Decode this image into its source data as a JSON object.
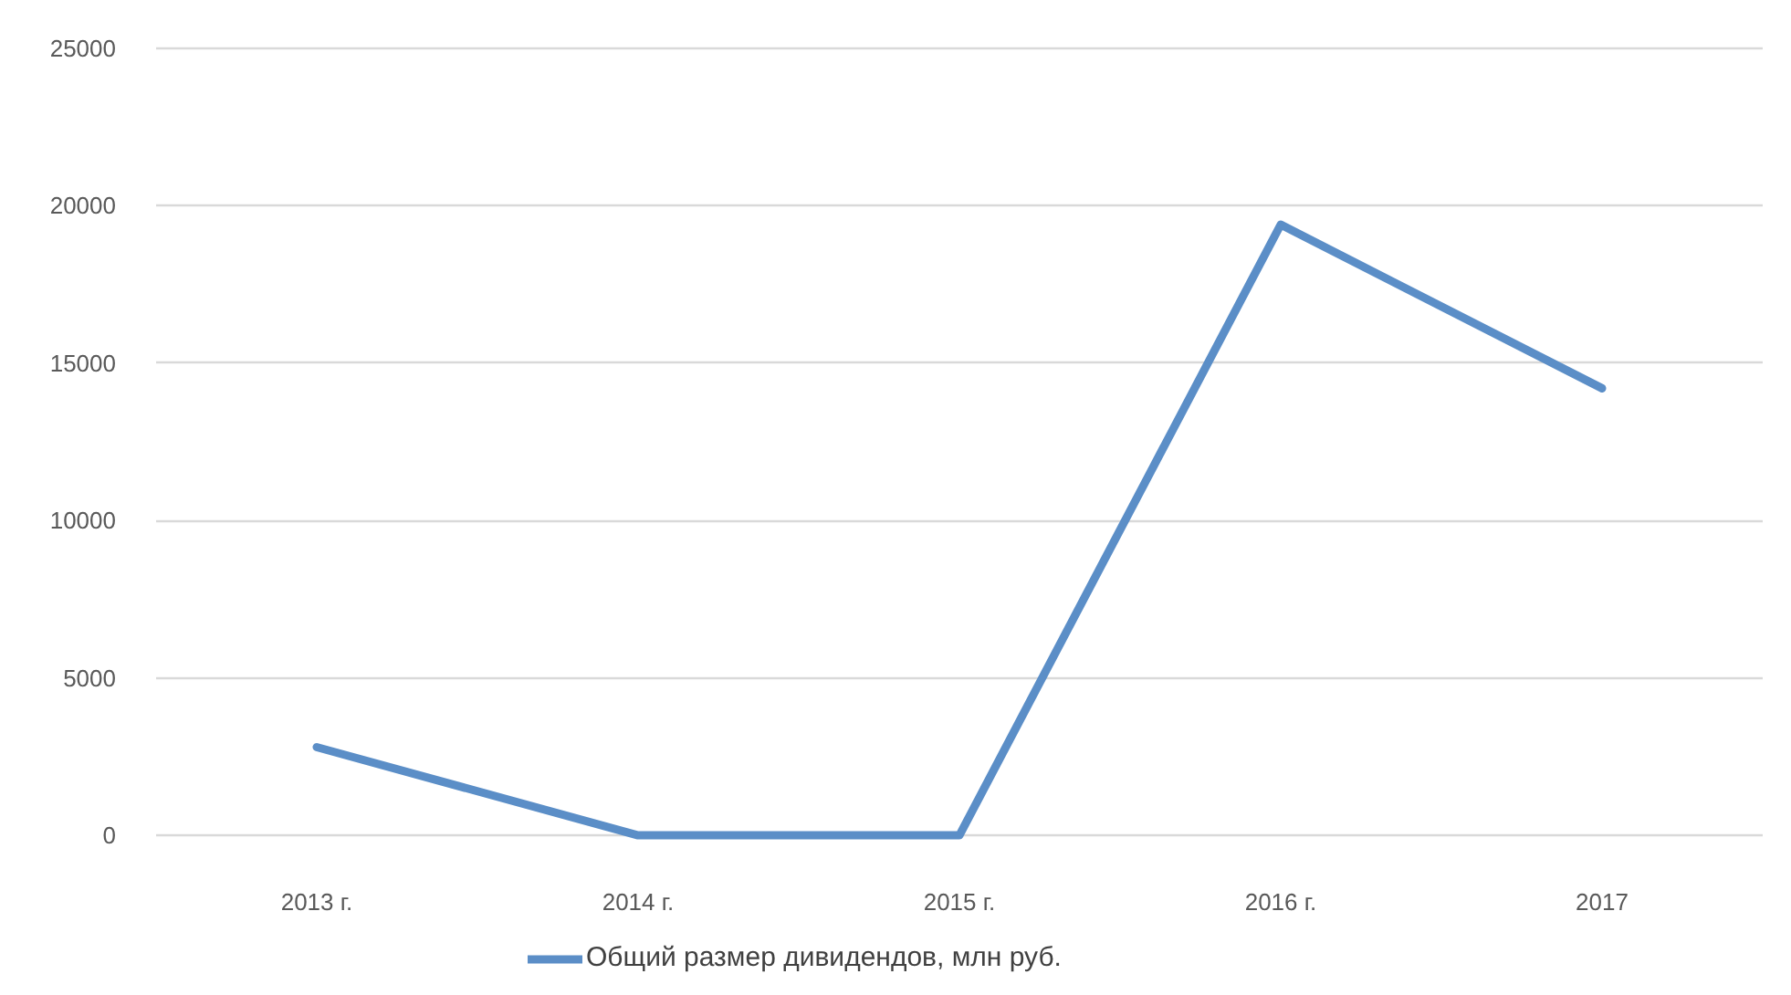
{
  "chart_data": {
    "type": "line",
    "categories": [
      "2013 г.",
      "2014 г.",
      "2015 г.",
      "2016 г.",
      "2017"
    ],
    "series": [
      {
        "name": "Общий размер дивидендов, млн руб.",
        "color": "#5b8ec7",
        "values": [
          2800,
          0,
          0,
          19400,
          14200
        ]
      }
    ],
    "ylim": [
      0,
      25000
    ],
    "yticks": [
      0,
      5000,
      10000,
      15000,
      20000,
      25000
    ],
    "grid": "y",
    "legend": "bottom",
    "marker": "none",
    "line_style": "solid"
  }
}
